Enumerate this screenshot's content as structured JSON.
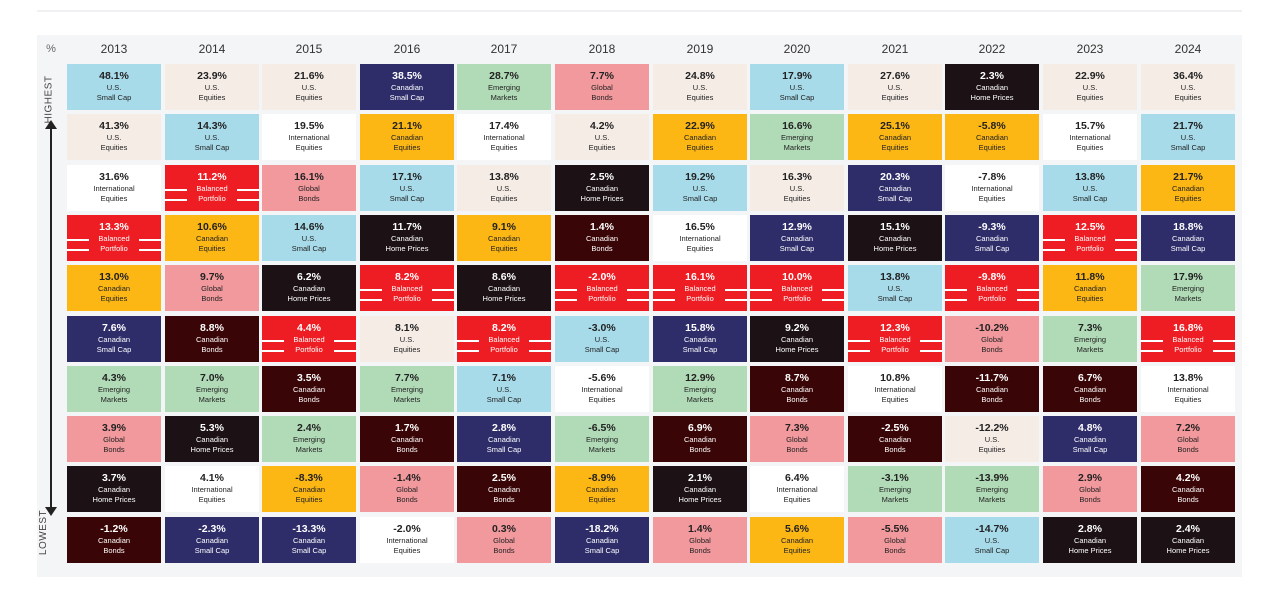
{
  "axis": {
    "unit_label": "%",
    "high_label": "HIGHEST",
    "low_label": "LOWEST"
  },
  "colors": {
    "U.S. Small Cap": "#a8dbea",
    "U.S. Equities": "#f5ece6",
    "International Equities": "#ffffff",
    "Canadian Equities": "#fcb715",
    "Balanced Portfolio": "#ee1d23",
    "Global Bonds": "#f2999d",
    "Canadian Small Cap": "#2e2d6a",
    "Emerging Markets": "#b1dbb7",
    "Canadian Bonds": "#3a0506",
    "Canadian Home Prices": "#1c1216"
  },
  "chart_data": {
    "type": "table",
    "years": [
      "2013",
      "2014",
      "2015",
      "2016",
      "2017",
      "2018",
      "2019",
      "2020",
      "2021",
      "2022",
      "2023",
      "2024"
    ],
    "columns": [
      [
        {
          "value": "48.1%",
          "name": "U.S.\nSmall Cap"
        },
        {
          "value": "41.3%",
          "name": "U.S.\nEquities"
        },
        {
          "value": "31.6%",
          "name": "International\nEquities"
        },
        {
          "value": "13.3%",
          "name": "Balanced\nPortfolio"
        },
        {
          "value": "13.0%",
          "name": "Canadian\nEquities"
        },
        {
          "value": "7.6%",
          "name": "Canadian\nSmall Cap"
        },
        {
          "value": "4.3%",
          "name": "Emerging\nMarkets"
        },
        {
          "value": "3.9%",
          "name": "Global\nBonds"
        },
        {
          "value": "3.7%",
          "name": "Canadian\nHome Prices"
        },
        {
          "value": "-1.2%",
          "name": "Canadian\nBonds"
        }
      ],
      [
        {
          "value": "23.9%",
          "name": "U.S.\nEquities"
        },
        {
          "value": "14.3%",
          "name": "U.S.\nSmall Cap"
        },
        {
          "value": "11.2%",
          "name": "Balanced\nPortfolio"
        },
        {
          "value": "10.6%",
          "name": "Canadian\nEquities"
        },
        {
          "value": "9.7%",
          "name": "Global\nBonds"
        },
        {
          "value": "8.8%",
          "name": "Canadian\nBonds"
        },
        {
          "value": "7.0%",
          "name": "Emerging\nMarkets"
        },
        {
          "value": "5.3%",
          "name": "Canadian\nHome Prices"
        },
        {
          "value": "4.1%",
          "name": "International\nEquities"
        },
        {
          "value": "-2.3%",
          "name": "Canadian\nSmall Cap"
        }
      ],
      [
        {
          "value": "21.6%",
          "name": "U.S.\nEquities"
        },
        {
          "value": "19.5%",
          "name": "International\nEquities"
        },
        {
          "value": "16.1%",
          "name": "Global\nBonds"
        },
        {
          "value": "14.6%",
          "name": "U.S.\nSmall Cap"
        },
        {
          "value": "6.2%",
          "name": "Canadian\nHome Prices"
        },
        {
          "value": "4.4%",
          "name": "Balanced\nPortfolio"
        },
        {
          "value": "3.5%",
          "name": "Canadian\nBonds"
        },
        {
          "value": "2.4%",
          "name": "Emerging\nMarkets"
        },
        {
          "value": "-8.3%",
          "name": "Canadian\nEquities"
        },
        {
          "value": "-13.3%",
          "name": "Canadian\nSmall Cap"
        }
      ],
      [
        {
          "value": "38.5%",
          "name": "Canadian\nSmall Cap"
        },
        {
          "value": "21.1%",
          "name": "Canadian\nEquities"
        },
        {
          "value": "17.1%",
          "name": "U.S.\nSmall Cap"
        },
        {
          "value": "11.7%",
          "name": "Canadian\nHome Prices"
        },
        {
          "value": "8.2%",
          "name": "Balanced\nPortfolio"
        },
        {
          "value": "8.1%",
          "name": "U.S.\nEquities"
        },
        {
          "value": "7.7%",
          "name": "Emerging\nMarkets"
        },
        {
          "value": "1.7%",
          "name": "Canadian\nBonds"
        },
        {
          "value": "-1.4%",
          "name": "Global\nBonds"
        },
        {
          "value": "-2.0%",
          "name": "International\nEquities"
        }
      ],
      [
        {
          "value": "28.7%",
          "name": "Emerging\nMarkets"
        },
        {
          "value": "17.4%",
          "name": "International\nEquities"
        },
        {
          "value": "13.8%",
          "name": "U.S.\nEquities"
        },
        {
          "value": "9.1%",
          "name": "Canadian\nEquities"
        },
        {
          "value": "8.6%",
          "name": "Canadian\nHome Prices"
        },
        {
          "value": "8.2%",
          "name": "Balanced\nPortfolio"
        },
        {
          "value": "7.1%",
          "name": "U.S.\nSmall Cap"
        },
        {
          "value": "2.8%",
          "name": "Canadian\nSmall Cap"
        },
        {
          "value": "2.5%",
          "name": "Canadian\nBonds"
        },
        {
          "value": "0.3%",
          "name": "Global\nBonds"
        }
      ],
      [
        {
          "value": "7.7%",
          "name": "Global\nBonds"
        },
        {
          "value": "4.2%",
          "name": "U.S.\nEquities"
        },
        {
          "value": "2.5%",
          "name": "Canadian\nHome Prices"
        },
        {
          "value": "1.4%",
          "name": "Canadian\nBonds"
        },
        {
          "value": "-2.0%",
          "name": "Balanced\nPortfolio"
        },
        {
          "value": "-3.0%",
          "name": "U.S.\nSmall Cap"
        },
        {
          "value": "-5.6%",
          "name": "International\nEquities"
        },
        {
          "value": "-6.5%",
          "name": "Emerging\nMarkets"
        },
        {
          "value": "-8.9%",
          "name": "Canadian\nEquities"
        },
        {
          "value": "-18.2%",
          "name": "Canadian\nSmall Cap"
        }
      ],
      [
        {
          "value": "24.8%",
          "name": "U.S.\nEquities"
        },
        {
          "value": "22.9%",
          "name": "Canadian\nEquities"
        },
        {
          "value": "19.2%",
          "name": "U.S.\nSmall Cap"
        },
        {
          "value": "16.5%",
          "name": "International\nEquities"
        },
        {
          "value": "16.1%",
          "name": "Balanced\nPortfolio"
        },
        {
          "value": "15.8%",
          "name": "Canadian\nSmall Cap"
        },
        {
          "value": "12.9%",
          "name": "Emerging\nMarkets"
        },
        {
          "value": "6.9%",
          "name": "Canadian\nBonds"
        },
        {
          "value": "2.1%",
          "name": "Canadian\nHome Prices"
        },
        {
          "value": "1.4%",
          "name": "Global\nBonds"
        }
      ],
      [
        {
          "value": "17.9%",
          "name": "U.S.\nSmall Cap"
        },
        {
          "value": "16.6%",
          "name": "Emerging\nMarkets"
        },
        {
          "value": "16.3%",
          "name": "U.S.\nEquities"
        },
        {
          "value": "12.9%",
          "name": "Canadian\nSmall Cap"
        },
        {
          "value": "10.0%",
          "name": "Balanced\nPortfolio"
        },
        {
          "value": "9.2%",
          "name": "Canadian\nHome Prices"
        },
        {
          "value": "8.7%",
          "name": "Canadian\nBonds"
        },
        {
          "value": "7.3%",
          "name": "Global\nBonds"
        },
        {
          "value": "6.4%",
          "name": "International\nEquities"
        },
        {
          "value": "5.6%",
          "name": "Canadian\nEquities"
        }
      ],
      [
        {
          "value": "27.6%",
          "name": "U.S.\nEquities"
        },
        {
          "value": "25.1%",
          "name": "Canadian\nEquities"
        },
        {
          "value": "20.3%",
          "name": "Canadian\nSmall Cap"
        },
        {
          "value": "15.1%",
          "name": "Canadian\nHome Prices"
        },
        {
          "value": "13.8%",
          "name": "U.S.\nSmall Cap"
        },
        {
          "value": "12.3%",
          "name": "Balanced\nPortfolio"
        },
        {
          "value": "10.8%",
          "name": "International\nEquities"
        },
        {
          "value": "-2.5%",
          "name": "Canadian\nBonds"
        },
        {
          "value": "-3.1%",
          "name": "Emerging\nMarkets"
        },
        {
          "value": "-5.5%",
          "name": "Global\nBonds"
        }
      ],
      [
        {
          "value": "2.3%",
          "name": "Canadian\nHome Prices"
        },
        {
          "value": "-5.8%",
          "name": "Canadian\nEquities"
        },
        {
          "value": "-7.8%",
          "name": "International\nEquities"
        },
        {
          "value": "-9.3%",
          "name": "Canadian\nSmall Cap"
        },
        {
          "value": "-9.8%",
          "name": "Balanced\nPortfolio"
        },
        {
          "value": "-10.2%",
          "name": "Global\nBonds"
        },
        {
          "value": "-11.7%",
          "name": "Canadian\nBonds"
        },
        {
          "value": "-12.2%",
          "name": "U.S.\nEquities"
        },
        {
          "value": "-13.9%",
          "name": "Emerging\nMarkets"
        },
        {
          "value": "-14.7%",
          "name": "U.S.\nSmall Cap"
        }
      ],
      [
        {
          "value": "22.9%",
          "name": "U.S.\nEquities"
        },
        {
          "value": "15.7%",
          "name": "International\nEquities"
        },
        {
          "value": "13.8%",
          "name": "U.S.\nSmall Cap"
        },
        {
          "value": "12.5%",
          "name": "Balanced\nPortfolio"
        },
        {
          "value": "11.8%",
          "name": "Canadian\nEquities"
        },
        {
          "value": "7.3%",
          "name": "Emerging\nMarkets"
        },
        {
          "value": "6.7%",
          "name": "Canadian\nBonds"
        },
        {
          "value": "4.8%",
          "name": "Canadian\nSmall Cap"
        },
        {
          "value": "2.9%",
          "name": "Global\nBonds"
        },
        {
          "value": "2.8%",
          "name": "Canadian\nHome Prices"
        }
      ],
      [
        {
          "value": "36.4%",
          "name": "U.S.\nEquities"
        },
        {
          "value": "21.7%",
          "name": "U.S.\nSmall Cap"
        },
        {
          "value": "21.7%",
          "name": "Canadian\nEquities"
        },
        {
          "value": "18.8%",
          "name": "Canadian\nSmall Cap"
        },
        {
          "value": "17.9%",
          "name": "Emerging\nMarkets"
        },
        {
          "value": "16.8%",
          "name": "Balanced\nPortfolio"
        },
        {
          "value": "13.8%",
          "name": "International\nEquities"
        },
        {
          "value": "7.2%",
          "name": "Global\nBonds"
        },
        {
          "value": "4.2%",
          "name": "Canadian\nBonds"
        },
        {
          "value": "2.4%",
          "name": "Canadian\nHome Prices"
        }
      ]
    ]
  }
}
